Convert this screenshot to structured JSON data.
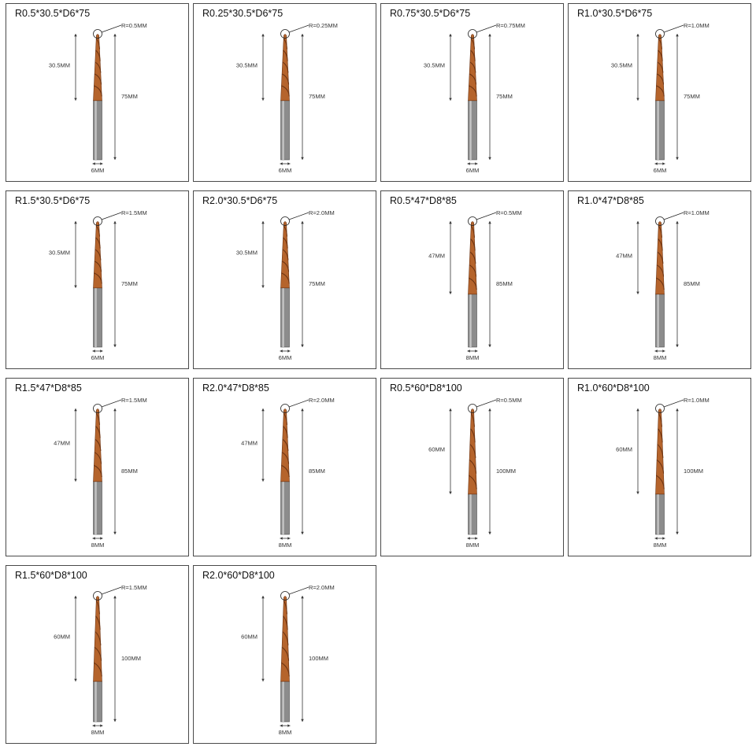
{
  "products": [
    {
      "title": "R0.5*30.5*D6*75",
      "radius_label": "R=0.5MM",
      "flute_label": "30.5MM",
      "length_label": "75MM",
      "diameter_label": "6MM",
      "flute_fraction": 0.53
    },
    {
      "title": "R0.25*30.5*D6*75",
      "radius_label": "R=0.25MM",
      "flute_label": "30.5MM",
      "length_label": "75MM",
      "diameter_label": "6MM",
      "flute_fraction": 0.53
    },
    {
      "title": "R0.75*30.5*D6*75",
      "radius_label": "R=0.75MM",
      "flute_label": "30.5MM",
      "length_label": "75MM",
      "diameter_label": "6MM",
      "flute_fraction": 0.53
    },
    {
      "title": "R1.0*30.5*D6*75",
      "radius_label": "R=1.0MM",
      "flute_label": "30.5MM",
      "length_label": "75MM",
      "diameter_label": "6MM",
      "flute_fraction": 0.53
    },
    {
      "title": "R1.5*30.5*D6*75",
      "radius_label": "R=1.5MM",
      "flute_label": "30.5MM",
      "length_label": "75MM",
      "diameter_label": "6MM",
      "flute_fraction": 0.53
    },
    {
      "title": "R2.0*30.5*D6*75",
      "radius_label": "R=2.0MM",
      "flute_label": "30.5MM",
      "length_label": "75MM",
      "diameter_label": "6MM",
      "flute_fraction": 0.53
    },
    {
      "title": "R0.5*47*D8*85",
      "radius_label": "R=0.5MM",
      "flute_label": "47MM",
      "length_label": "85MM",
      "diameter_label": "8MM",
      "flute_fraction": 0.58
    },
    {
      "title": "R1.0*47*D8*85",
      "radius_label": "R=1.0MM",
      "flute_label": "47MM",
      "length_label": "85MM",
      "diameter_label": "8MM",
      "flute_fraction": 0.58
    },
    {
      "title": "R1.5*47*D8*85",
      "radius_label": "R=1.5MM",
      "flute_label": "47MM",
      "length_label": "85MM",
      "diameter_label": "8MM",
      "flute_fraction": 0.58
    },
    {
      "title": "R2.0*47*D8*85",
      "radius_label": "R=2.0MM",
      "flute_label": "47MM",
      "length_label": "85MM",
      "diameter_label": "8MM",
      "flute_fraction": 0.58
    },
    {
      "title": "R0.5*60*D8*100",
      "radius_label": "R=0.5MM",
      "flute_label": "60MM",
      "length_label": "100MM",
      "diameter_label": "8MM",
      "flute_fraction": 0.68
    },
    {
      "title": "R1.0*60*D8*100",
      "radius_label": "R=1.0MM",
      "flute_label": "60MM",
      "length_label": "100MM",
      "diameter_label": "8MM",
      "flute_fraction": 0.68
    },
    {
      "title": "R1.5*60*D8*100",
      "radius_label": "R=1.5MM",
      "flute_label": "60MM",
      "length_label": "100MM",
      "diameter_label": "8MM",
      "flute_fraction": 0.68
    },
    {
      "title": "R2.0*60*D8*100",
      "radius_label": "R=2.0MM",
      "flute_label": "60MM",
      "length_label": "100MM",
      "diameter_label": "8MM",
      "flute_fraction": 0.68
    }
  ],
  "colors": {
    "coating": "#b5642c",
    "coating_dark": "#6e3513",
    "shank": "#8c8c8c",
    "shank_dark": "#4b4b4b",
    "border": "#4a4a4a",
    "dimension_line": "#333333"
  }
}
